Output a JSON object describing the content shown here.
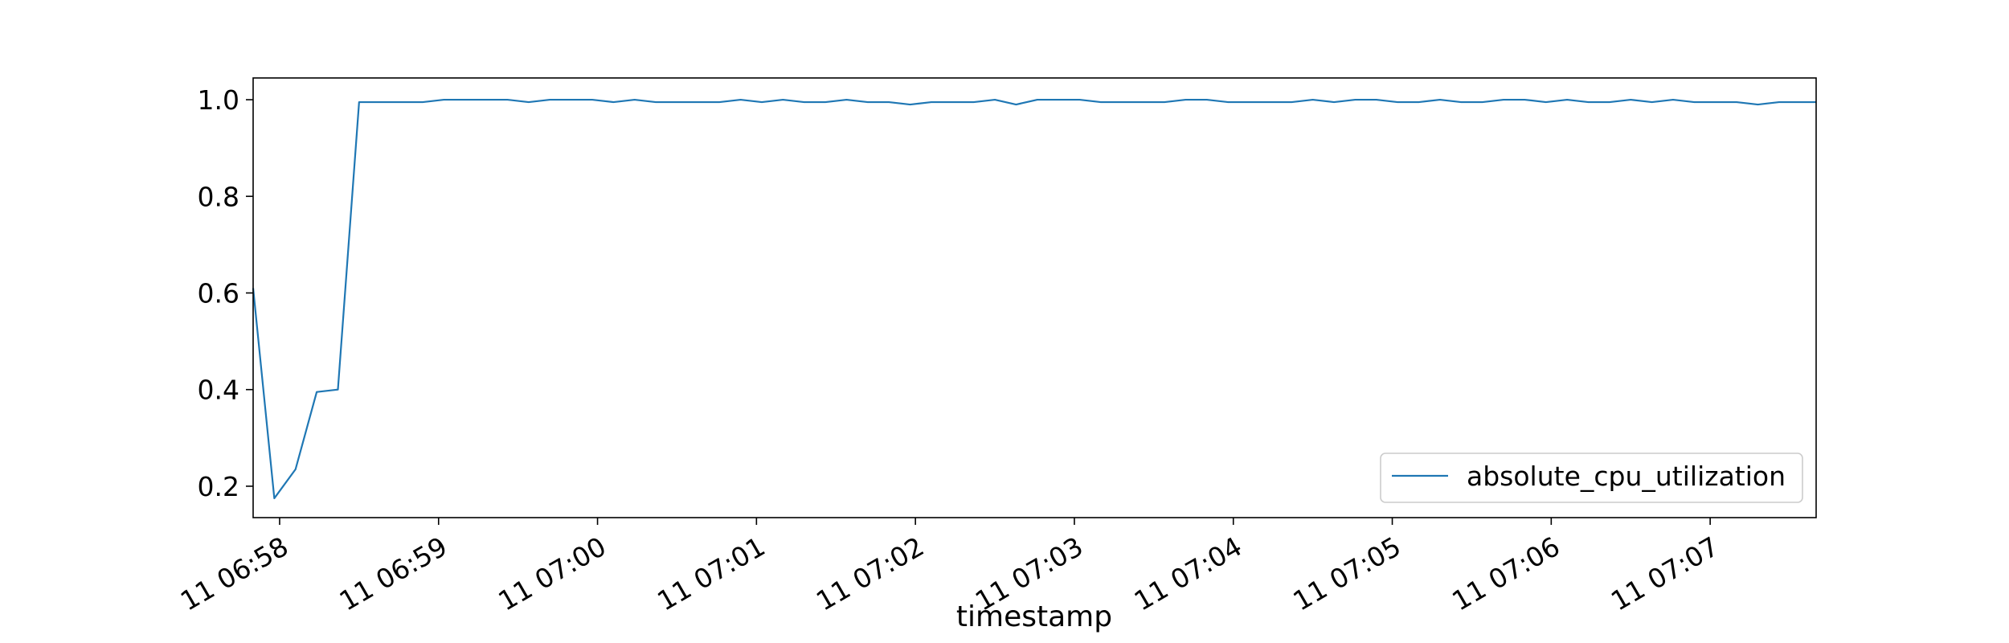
{
  "chart_data": {
    "type": "line",
    "title": "",
    "xlabel": "timestamp",
    "ylabel": "",
    "x_tick_labels": [
      "11 06:58",
      "11 06:59",
      "11 07:00",
      "11 07:01",
      "11 07:02",
      "11 07:03",
      "11 07:04",
      "11 07:05",
      "11 07:06",
      "11 07:07"
    ],
    "y_tick_labels": [
      "0.2",
      "0.4",
      "0.6",
      "0.8",
      "1.0"
    ],
    "y_ticks": [
      0.2,
      0.4,
      0.6,
      0.8,
      1.0
    ],
    "ylim": [
      0.135,
      1.045
    ],
    "xlim": [
      "06:57:50",
      "07:07:40"
    ],
    "grid": false,
    "legend_position": "lower-right",
    "colors": {
      "series": "#1f77b4"
    },
    "series": [
      {
        "name": "absolute_cpu_utilization",
        "x": [
          "06:57:50",
          "06:57:58",
          "06:58:06",
          "06:58:14",
          "06:58:22",
          "06:58:30",
          "06:58:38",
          "06:58:46",
          "06:58:54",
          "06:59:02",
          "06:59:10",
          "06:59:18",
          "06:59:26",
          "06:59:34",
          "06:59:42",
          "06:59:50",
          "06:59:58",
          "07:00:06",
          "07:00:14",
          "07:00:22",
          "07:00:30",
          "07:00:38",
          "07:00:46",
          "07:00:54",
          "07:01:02",
          "07:01:10",
          "07:01:18",
          "07:01:26",
          "07:01:34",
          "07:01:42",
          "07:01:50",
          "07:01:58",
          "07:02:06",
          "07:02:14",
          "07:02:22",
          "07:02:30",
          "07:02:38",
          "07:02:46",
          "07:02:54",
          "07:03:02",
          "07:03:10",
          "07:03:18",
          "07:03:26",
          "07:03:34",
          "07:03:42",
          "07:03:50",
          "07:03:58",
          "07:04:06",
          "07:04:14",
          "07:04:22",
          "07:04:30",
          "07:04:38",
          "07:04:46",
          "07:04:54",
          "07:05:02",
          "07:05:10",
          "07:05:18",
          "07:05:26",
          "07:05:34",
          "07:05:42",
          "07:05:50",
          "07:05:58",
          "07:06:06",
          "07:06:14",
          "07:06:22",
          "07:06:30",
          "07:06:38",
          "07:06:46",
          "07:06:54",
          "07:07:02",
          "07:07:10",
          "07:07:18",
          "07:07:26",
          "07:07:34",
          "07:07:40"
        ],
        "values": [
          0.61,
          0.175,
          0.235,
          0.395,
          0.4,
          0.995,
          0.995,
          0.995,
          0.995,
          1.0,
          1.0,
          1.0,
          1.0,
          0.995,
          1.0,
          1.0,
          1.0,
          0.995,
          1.0,
          0.995,
          0.995,
          0.995,
          0.995,
          1.0,
          0.995,
          1.0,
          0.995,
          0.995,
          1.0,
          0.995,
          0.995,
          0.99,
          0.995,
          0.995,
          0.995,
          1.0,
          0.99,
          1.0,
          1.0,
          1.0,
          0.995,
          0.995,
          0.995,
          0.995,
          1.0,
          1.0,
          0.995,
          0.995,
          0.995,
          0.995,
          1.0,
          0.995,
          1.0,
          1.0,
          0.995,
          0.995,
          1.0,
          0.995,
          0.995,
          1.0,
          1.0,
          0.995,
          1.0,
          0.995,
          0.995,
          1.0,
          0.995,
          1.0,
          0.995,
          0.995,
          0.995,
          0.99,
          0.995,
          0.995,
          0.995
        ]
      }
    ]
  }
}
